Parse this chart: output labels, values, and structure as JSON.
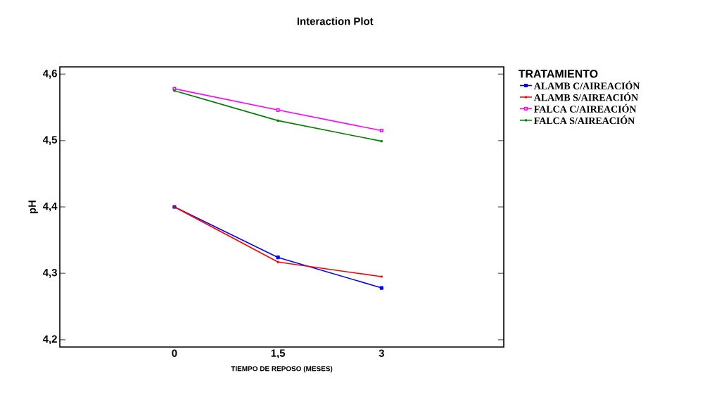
{
  "chart_data": {
    "type": "line",
    "title": "Interaction Plot",
    "xlabel": "TIEMPO DE REPOSO (MESES)",
    "ylabel": "pH",
    "legend_title": "TRATAMIENTO",
    "x": [
      0,
      1.5,
      3
    ],
    "series": [
      {
        "name": "ALAMB C/AIREACIÓN",
        "color": "#0000ff",
        "marker": "square",
        "values": [
          4.4,
          4.324,
          4.278
        ]
      },
      {
        "name": "ALAMB S/AIREACIÓN",
        "color": "#ff0000",
        "marker": "cross",
        "values": [
          4.4,
          4.317,
          4.295
        ]
      },
      {
        "name": "FALCA C/AIREACIÓN",
        "color": "#ff00ff",
        "marker": "square",
        "values": [
          4.578,
          4.546,
          4.515
        ]
      },
      {
        "name": "FALCA S/AIREACIÓN",
        "color": "#008000",
        "marker": "cross",
        "values": [
          4.575,
          4.53,
          4.499
        ]
      }
    ],
    "xlim": [
      -1.66,
      4.77
    ],
    "ylim": [
      4.189,
      4.611
    ],
    "xticks": [
      0,
      {
        "value": 1.5,
        "label": "1,5"
      },
      3
    ],
    "yticks": [
      {
        "value": 4.2,
        "label": "4,2"
      },
      {
        "value": 4.3,
        "label": "4,3"
      },
      {
        "value": 4.4,
        "label": "4,4"
      },
      {
        "value": 4.5,
        "label": "4,5"
      },
      {
        "value": 4.6,
        "label": "4,6"
      }
    ],
    "grid": false,
    "legend": "right",
    "line_style": "solid"
  }
}
